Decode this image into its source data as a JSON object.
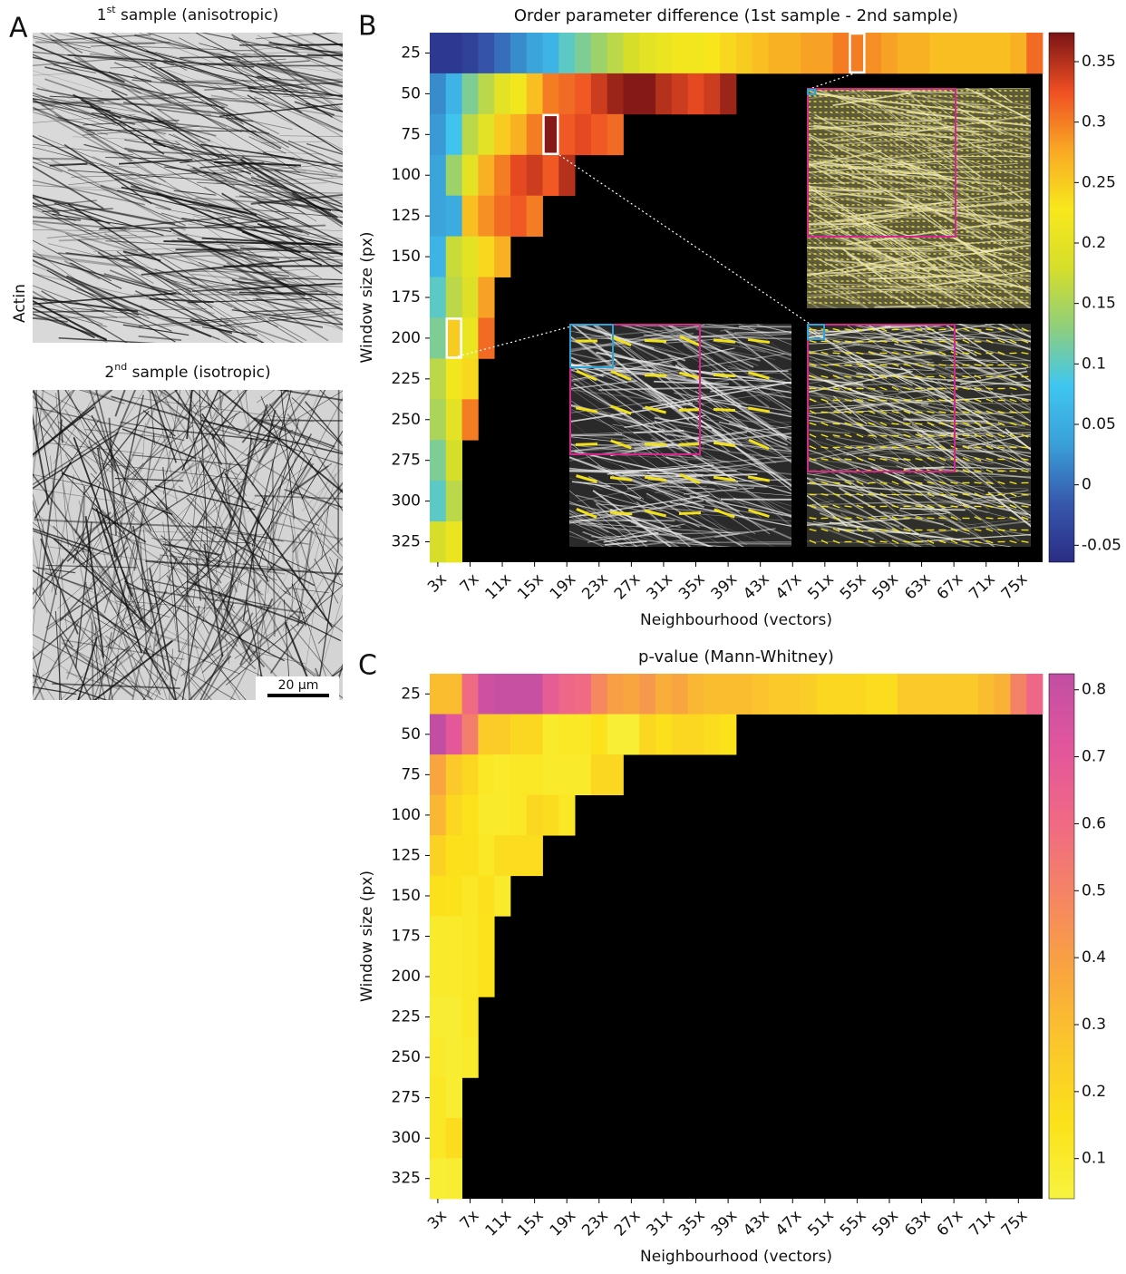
{
  "panel_labels": [
    "A",
    "B",
    "C"
  ],
  "panel_a": {
    "images": [
      {
        "number": "1",
        "sup": "st",
        "rest": " sample (anisotropic)"
      },
      {
        "number": "2",
        "sup": "nd",
        "rest": " sample (isotropic)"
      }
    ],
    "stain": "Actin",
    "scale_bar": "20 µm"
  },
  "chart_data": [
    {
      "type": "heatmap",
      "title": "Order parameter difference (1st sample - 2nd sample)",
      "x_label": "Neighbourhood (vectors)",
      "y_label": "Window size (px)",
      "categories": [
        "3x",
        null,
        "7x",
        null,
        "11x",
        null,
        "15x",
        null,
        "19x",
        null,
        "23x",
        null,
        "27x",
        null,
        "31x",
        null,
        "35x",
        null,
        "39x",
        null,
        "43x",
        null,
        "47x",
        null,
        "51x",
        null,
        "55x",
        null,
        "59x",
        null,
        "63x",
        null,
        "67x",
        null,
        "71x",
        null,
        "75x",
        null
      ],
      "y": [
        25,
        50,
        75,
        100,
        125,
        150,
        175,
        200,
        225,
        250,
        275,
        300,
        325
      ],
      "values": [
        [
          -0.05,
          -0.05,
          -0.04,
          -0.02,
          0,
          0.02,
          0.04,
          0.06,
          0.1,
          0.12,
          0.14,
          0.16,
          0.18,
          0.2,
          0.21,
          0.22,
          0.22,
          0.23,
          0.24,
          0.25,
          0.26,
          0.27,
          0.27,
          0.28,
          0.28,
          0.3,
          0.3,
          0.29,
          0.28,
          0.27,
          0.27,
          0.26,
          0.26,
          0.26,
          0.26,
          0.26,
          0.27,
          0.31
        ],
        [
          0.02,
          0.06,
          0.12,
          0.16,
          0.2,
          0.22,
          0.26,
          0.3,
          0.31,
          0.32,
          0.34,
          0.36,
          0.37,
          0.37,
          0.35,
          0.34,
          0.33,
          0.34,
          0.36,
          null,
          null,
          null,
          null,
          null,
          null,
          null,
          null,
          null,
          null,
          null,
          null,
          null,
          null,
          null,
          null,
          null,
          null,
          null
        ],
        [
          0.03,
          0.08,
          0.16,
          0.2,
          0.25,
          0.27,
          0.3,
          0.37,
          0.32,
          0.33,
          0.32,
          0.31,
          null,
          null,
          null,
          null,
          null,
          null,
          null,
          null,
          null,
          null,
          null,
          null,
          null,
          null,
          null,
          null,
          null,
          null,
          null,
          null,
          null,
          null,
          null,
          null,
          null,
          null
        ],
        [
          0.04,
          0.14,
          0.2,
          0.27,
          0.3,
          0.33,
          0.34,
          0.32,
          0.35,
          null,
          null,
          null,
          null,
          null,
          null,
          null,
          null,
          null,
          null,
          null,
          null,
          null,
          null,
          null,
          null,
          null,
          null,
          null,
          null,
          null,
          null,
          null,
          null,
          null,
          null,
          null,
          null,
          null
        ],
        [
          0.04,
          0.05,
          0.26,
          0.29,
          0.31,
          0.32,
          0.3,
          null,
          null,
          null,
          null,
          null,
          null,
          null,
          null,
          null,
          null,
          null,
          null,
          null,
          null,
          null,
          null,
          null,
          null,
          null,
          null,
          null,
          null,
          null,
          null,
          null,
          null,
          null,
          null,
          null,
          null,
          null
        ],
        [
          0.06,
          0.17,
          0.2,
          0.24,
          0.27,
          null,
          null,
          null,
          null,
          null,
          null,
          null,
          null,
          null,
          null,
          null,
          null,
          null,
          null,
          null,
          null,
          null,
          null,
          null,
          null,
          null,
          null,
          null,
          null,
          null,
          null,
          null,
          null,
          null,
          null,
          null,
          null,
          null
        ],
        [
          0.1,
          0.16,
          0.19,
          0.28,
          null,
          null,
          null,
          null,
          null,
          null,
          null,
          null,
          null,
          null,
          null,
          null,
          null,
          null,
          null,
          null,
          null,
          null,
          null,
          null,
          null,
          null,
          null,
          null,
          null,
          null,
          null,
          null,
          null,
          null,
          null,
          null,
          null,
          null
        ],
        [
          0.12,
          0.25,
          0.21,
          0.31,
          null,
          null,
          null,
          null,
          null,
          null,
          null,
          null,
          null,
          null,
          null,
          null,
          null,
          null,
          null,
          null,
          null,
          null,
          null,
          null,
          null,
          null,
          null,
          null,
          null,
          null,
          null,
          null,
          null,
          null,
          null,
          null,
          null,
          null
        ],
        [
          0.16,
          0.22,
          0.24,
          null,
          null,
          null,
          null,
          null,
          null,
          null,
          null,
          null,
          null,
          null,
          null,
          null,
          null,
          null,
          null,
          null,
          null,
          null,
          null,
          null,
          null,
          null,
          null,
          null,
          null,
          null,
          null,
          null,
          null,
          null,
          null,
          null,
          null,
          null
        ],
        [
          0.15,
          0.2,
          0.3,
          null,
          null,
          null,
          null,
          null,
          null,
          null,
          null,
          null,
          null,
          null,
          null,
          null,
          null,
          null,
          null,
          null,
          null,
          null,
          null,
          null,
          null,
          null,
          null,
          null,
          null,
          null,
          null,
          null,
          null,
          null,
          null,
          null,
          null,
          null
        ],
        [
          0.12,
          0.18,
          null,
          null,
          null,
          null,
          null,
          null,
          null,
          null,
          null,
          null,
          null,
          null,
          null,
          null,
          null,
          null,
          null,
          null,
          null,
          null,
          null,
          null,
          null,
          null,
          null,
          null,
          null,
          null,
          null,
          null,
          null,
          null,
          null,
          null,
          null,
          null
        ],
        [
          0.1,
          0.16,
          null,
          null,
          null,
          null,
          null,
          null,
          null,
          null,
          null,
          null,
          null,
          null,
          null,
          null,
          null,
          null,
          null,
          null,
          null,
          null,
          null,
          null,
          null,
          null,
          null,
          null,
          null,
          null,
          null,
          null,
          null,
          null,
          null,
          null,
          null,
          null
        ],
        [
          0.18,
          0.21,
          null,
          null,
          null,
          null,
          null,
          null,
          null,
          null,
          null,
          null,
          null,
          null,
          null,
          null,
          null,
          null,
          null,
          null,
          null,
          null,
          null,
          null,
          null,
          null,
          null,
          null,
          null,
          null,
          null,
          null,
          null,
          null,
          null,
          null,
          null,
          null
        ]
      ],
      "clim": [
        -0.064,
        0.374
      ],
      "cticks": [
        -0.05,
        0,
        0.05,
        0.1,
        0.15,
        0.2,
        0.25,
        0.3,
        0.35
      ],
      "colormap": [
        "#2a2d84",
        "#3658ad",
        "#3a9fd8",
        "#3fc6f0",
        "#8fcf7a",
        "#d6de2a",
        "#f8e81c",
        "#f9a825",
        "#ef4f23",
        "#7a1416"
      ],
      "missing_color": "#000000"
    },
    {
      "type": "heatmap",
      "title": "p-value (Mann-Whitney)",
      "x_label": "Neighbourhood (vectors)",
      "y_label": "Window size (px)",
      "categories": [
        "3x",
        null,
        "7x",
        null,
        "11x",
        null,
        "15x",
        null,
        "19x",
        null,
        "23x",
        null,
        "27x",
        null,
        "31x",
        null,
        "35x",
        null,
        "39x",
        null,
        "43x",
        null,
        "47x",
        null,
        "51x",
        null,
        "55x",
        null,
        "59x",
        null,
        "63x",
        null,
        "67x",
        null,
        "71x",
        null,
        "75x",
        null
      ],
      "y": [
        25,
        50,
        75,
        100,
        125,
        150,
        175,
        200,
        225,
        250,
        275,
        300,
        325
      ],
      "values": [
        [
          0.3,
          0.3,
          0.6,
          0.78,
          0.8,
          0.8,
          0.8,
          0.68,
          0.62,
          0.6,
          0.48,
          0.4,
          0.38,
          0.42,
          0.35,
          0.38,
          0.32,
          0.3,
          0.3,
          0.3,
          0.28,
          0.26,
          0.26,
          0.24,
          0.2,
          0.2,
          0.2,
          0.18,
          0.18,
          0.26,
          0.26,
          0.26,
          0.26,
          0.26,
          0.3,
          0.34,
          0.5,
          0.62
        ],
        [
          0.82,
          0.7,
          0.52,
          0.25,
          0.25,
          0.2,
          0.2,
          0.1,
          0.12,
          0.12,
          0.15,
          0.07,
          0.07,
          0.2,
          0.16,
          0.2,
          0.2,
          0.18,
          0.15,
          null,
          null,
          null,
          null,
          null,
          null,
          null,
          null,
          null,
          null,
          null,
          null,
          null,
          null,
          null,
          null,
          null,
          null,
          null
        ],
        [
          0.38,
          0.26,
          0.2,
          0.12,
          0.1,
          0.12,
          0.12,
          0.1,
          0.1,
          0.1,
          0.2,
          0.2,
          null,
          null,
          null,
          null,
          null,
          null,
          null,
          null,
          null,
          null,
          null,
          null,
          null,
          null,
          null,
          null,
          null,
          null,
          null,
          null,
          null,
          null,
          null,
          null,
          null,
          null
        ],
        [
          0.32,
          0.2,
          0.15,
          0.1,
          0.1,
          0.12,
          0.2,
          0.18,
          0.12,
          null,
          null,
          null,
          null,
          null,
          null,
          null,
          null,
          null,
          null,
          null,
          null,
          null,
          null,
          null,
          null,
          null,
          null,
          null,
          null,
          null,
          null,
          null,
          null,
          null,
          null,
          null,
          null,
          null
        ],
        [
          0.22,
          0.16,
          0.16,
          0.12,
          0.18,
          0.18,
          0.18,
          null,
          null,
          null,
          null,
          null,
          null,
          null,
          null,
          null,
          null,
          null,
          null,
          null,
          null,
          null,
          null,
          null,
          null,
          null,
          null,
          null,
          null,
          null,
          null,
          null,
          null,
          null,
          null,
          null,
          null,
          null
        ],
        [
          0.16,
          0.15,
          0.12,
          0.16,
          0.1,
          null,
          null,
          null,
          null,
          null,
          null,
          null,
          null,
          null,
          null,
          null,
          null,
          null,
          null,
          null,
          null,
          null,
          null,
          null,
          null,
          null,
          null,
          null,
          null,
          null,
          null,
          null,
          null,
          null,
          null,
          null,
          null,
          null
        ],
        [
          0.1,
          0.1,
          0.12,
          0.15,
          null,
          null,
          null,
          null,
          null,
          null,
          null,
          null,
          null,
          null,
          null,
          null,
          null,
          null,
          null,
          null,
          null,
          null,
          null,
          null,
          null,
          null,
          null,
          null,
          null,
          null,
          null,
          null,
          null,
          null,
          null,
          null,
          null,
          null
        ],
        [
          0.1,
          0.1,
          0.12,
          0.15,
          null,
          null,
          null,
          null,
          null,
          null,
          null,
          null,
          null,
          null,
          null,
          null,
          null,
          null,
          null,
          null,
          null,
          null,
          null,
          null,
          null,
          null,
          null,
          null,
          null,
          null,
          null,
          null,
          null,
          null,
          null,
          null,
          null,
          null
        ],
        [
          0.08,
          0.08,
          0.12,
          null,
          null,
          null,
          null,
          null,
          null,
          null,
          null,
          null,
          null,
          null,
          null,
          null,
          null,
          null,
          null,
          null,
          null,
          null,
          null,
          null,
          null,
          null,
          null,
          null,
          null,
          null,
          null,
          null,
          null,
          null,
          null,
          null,
          null,
          null
        ],
        [
          0.1,
          0.08,
          0.1,
          null,
          null,
          null,
          null,
          null,
          null,
          null,
          null,
          null,
          null,
          null,
          null,
          null,
          null,
          null,
          null,
          null,
          null,
          null,
          null,
          null,
          null,
          null,
          null,
          null,
          null,
          null,
          null,
          null,
          null,
          null,
          null,
          null,
          null,
          null
        ],
        [
          0.12,
          0.08,
          null,
          null,
          null,
          null,
          null,
          null,
          null,
          null,
          null,
          null,
          null,
          null,
          null,
          null,
          null,
          null,
          null,
          null,
          null,
          null,
          null,
          null,
          null,
          null,
          null,
          null,
          null,
          null,
          null,
          null,
          null,
          null,
          null,
          null,
          null,
          null
        ],
        [
          0.12,
          0.18,
          null,
          null,
          null,
          null,
          null,
          null,
          null,
          null,
          null,
          null,
          null,
          null,
          null,
          null,
          null,
          null,
          null,
          null,
          null,
          null,
          null,
          null,
          null,
          null,
          null,
          null,
          null,
          null,
          null,
          null,
          null,
          null,
          null,
          null,
          null,
          null
        ],
        [
          0.07,
          0.08,
          null,
          null,
          null,
          null,
          null,
          null,
          null,
          null,
          null,
          null,
          null,
          null,
          null,
          null,
          null,
          null,
          null,
          null,
          null,
          null,
          null,
          null,
          null,
          null,
          null,
          null,
          null,
          null,
          null,
          null,
          null,
          null,
          null,
          null,
          null,
          null
        ]
      ],
      "clim": [
        0.04,
        0.824
      ],
      "cticks": [
        0.1,
        0.2,
        0.3,
        0.4,
        0.5,
        0.6,
        0.7,
        0.8
      ],
      "colormap": [
        "#f7f33f",
        "#fbe21a",
        "#fbc82a",
        "#f9a63e",
        "#f58662",
        "#f06a84",
        "#e2569c",
        "#c14ea4"
      ],
      "missing_color": "#000000"
    }
  ]
}
